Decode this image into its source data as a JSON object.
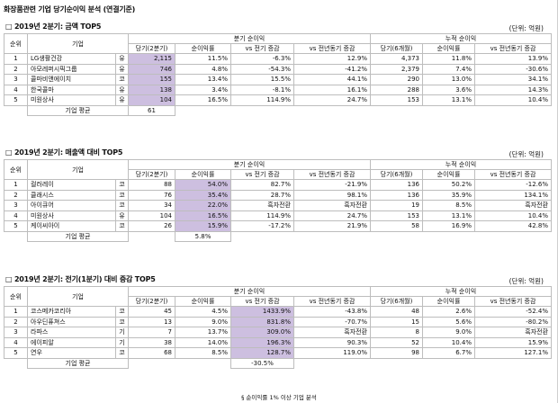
{
  "title": "화장품관련 기업 당기순이익 분석 (연결기준)",
  "sections": [
    {
      "title": "□ 2019년 2분기: 금액 TOP5",
      "unit": "(단위: 억원)",
      "headers": {
        "rank": "순위",
        "company": "기업",
        "quarter": "분기 순이익",
        "cumulative": "누적 순이익",
        "cur": "당기(2분기)",
        "margin": "순이익률",
        "qoq": "vs 전기 증감",
        "yoy": "vs 전년동기 증감",
        "cur6": "당기(6개월)",
        "margin2": "순이익률",
        "yoy2": "vs 전년동기 증감"
      },
      "rows": [
        {
          "rank": "1",
          "company": "LG생활건강",
          "mark": "유",
          "cur": "2,115",
          "margin": "11.5%",
          "qoq": "-6.3%",
          "yoy": "12.9%",
          "cur6": "4,373",
          "margin2": "11.8%",
          "yoy2": "13.9%"
        },
        {
          "rank": "2",
          "company": "아모레퍼시픽그룹",
          "mark": "유",
          "cur": "746",
          "margin": "4.8%",
          "qoq": "-54.3%",
          "yoy": "-41.2%",
          "cur6": "2,379",
          "margin2": "7.4%",
          "yoy2": "-30.6%"
        },
        {
          "rank": "3",
          "company": "콜마비앤에이치",
          "mark": "코",
          "cur": "155",
          "margin": "13.4%",
          "qoq": "15.5%",
          "yoy": "44.1%",
          "cur6": "290",
          "margin2": "13.0%",
          "yoy2": "34.1%"
        },
        {
          "rank": "4",
          "company": "한국콜마",
          "mark": "유",
          "cur": "138",
          "margin": "3.4%",
          "qoq": "-8.1%",
          "yoy": "16.1%",
          "cur6": "288",
          "margin2": "3.6%",
          "yoy2": "14.3%"
        },
        {
          "rank": "5",
          "company": "미원상사",
          "mark": "유",
          "cur": "104",
          "margin": "16.5%",
          "qoq": "114.9%",
          "yoy": "24.7%",
          "cur6": "153",
          "margin2": "13.1%",
          "yoy2": "10.4%"
        }
      ],
      "avg_label": "기업 평균",
      "avg_value": "61"
    },
    {
      "title": "□ 2019년 2분기: 매출액 대비 TOP5",
      "unit": "(단위: 억원)",
      "headers": {
        "rank": "순위",
        "company": "기업",
        "quarter": "분기 순이익",
        "cumulative": "누적 순이익",
        "cur": "당기(2분기)",
        "margin": "순이익률",
        "qoq": "vs 전기 증감",
        "yoy": "vs 전년동기 증감",
        "cur6": "당기(6개월)",
        "margin2": "순이익률",
        "yoy2": "vs 전년동기 증감"
      },
      "rows": [
        {
          "rank": "1",
          "company": "컬러레이",
          "mark": "코",
          "cur": "88",
          "margin": "54.0%",
          "qoq": "82.7%",
          "yoy": "-21.9%",
          "cur6": "136",
          "margin2": "50.2%",
          "yoy2": "-12.6%"
        },
        {
          "rank": "2",
          "company": "클래시스",
          "mark": "코",
          "cur": "76",
          "margin": "35.4%",
          "qoq": "28.7%",
          "yoy": "98.1%",
          "cur6": "136",
          "margin2": "35.9%",
          "yoy2": "134.1%"
        },
        {
          "rank": "3",
          "company": "아이큐어",
          "mark": "코",
          "cur": "34",
          "margin": "22.0%",
          "qoq": "흑자전환",
          "yoy": "흑자전환",
          "cur6": "19",
          "margin2": "8.5%",
          "yoy2": "흑자전환"
        },
        {
          "rank": "4",
          "company": "미원상사",
          "mark": "유",
          "cur": "104",
          "margin": "16.5%",
          "qoq": "114.9%",
          "yoy": "24.7%",
          "cur6": "153",
          "margin2": "13.1%",
          "yoy2": "10.4%"
        },
        {
          "rank": "5",
          "company": "케이씨아이",
          "mark": "코",
          "cur": "26",
          "margin": "15.9%",
          "qoq": "-17.2%",
          "yoy": "21.9%",
          "cur6": "58",
          "margin2": "16.9%",
          "yoy2": "42.8%"
        }
      ],
      "avg_label": "기업 평균",
      "avg_value": "5.8%"
    },
    {
      "title": "□ 2019년 2분기: 전기(1분기) 대비 증감 TOP5",
      "unit": "(단위: 억원)",
      "headers": {
        "rank": "순위",
        "company": "기업",
        "quarter": "분기 순이익",
        "cumulative": "누적 순이익",
        "cur": "당기(2분기)",
        "margin": "순이익률",
        "qoq": "vs 전기 증감",
        "yoy": "vs 전년동기 증감",
        "cur6": "당기(6개월)",
        "margin2": "순이익률",
        "yoy2": "vs 전년동기 증감"
      },
      "rows": [
        {
          "rank": "1",
          "company": "코스메카코리아",
          "mark": "코",
          "cur": "45",
          "margin": "4.5%",
          "qoq": "1433.9%",
          "yoy": "-43.8%",
          "cur6": "48",
          "margin2": "2.6%",
          "yoy2": "-52.4%"
        },
        {
          "rank": "2",
          "company": "아우딘퓨쳐스",
          "mark": "코",
          "cur": "13",
          "margin": "9.0%",
          "qoq": "831.8%",
          "yoy": "-70.7%",
          "cur6": "15",
          "margin2": "5.6%",
          "yoy2": "-80.2%"
        },
        {
          "rank": "3",
          "company": "라파스",
          "mark": "기",
          "cur": "7",
          "margin": "13.7%",
          "qoq": "309.0%",
          "yoy": "흑자전환",
          "cur6": "8",
          "margin2": "9.0%",
          "yoy2": "흑자전환"
        },
        {
          "rank": "4",
          "company": "에이피알",
          "mark": "기",
          "cur": "38",
          "margin": "14.0%",
          "qoq": "196.3%",
          "yoy": "90.3%",
          "cur6": "52",
          "margin2": "10.4%",
          "yoy2": "15.9%"
        },
        {
          "rank": "5",
          "company": "연우",
          "mark": "코",
          "cur": "68",
          "margin": "8.5%",
          "qoq": "128.7%",
          "yoy": "119.0%",
          "cur6": "98",
          "margin2": "6.7%",
          "yoy2": "127.1%"
        }
      ],
      "avg_label": "기업 평균",
      "avg_value": "-30.5%"
    }
  ],
  "footnote": "§ 순이익률 1% 이상 기업 분석",
  "colors": {
    "highlight": "#cdbfe0",
    "grid": "#bdbdbd"
  }
}
